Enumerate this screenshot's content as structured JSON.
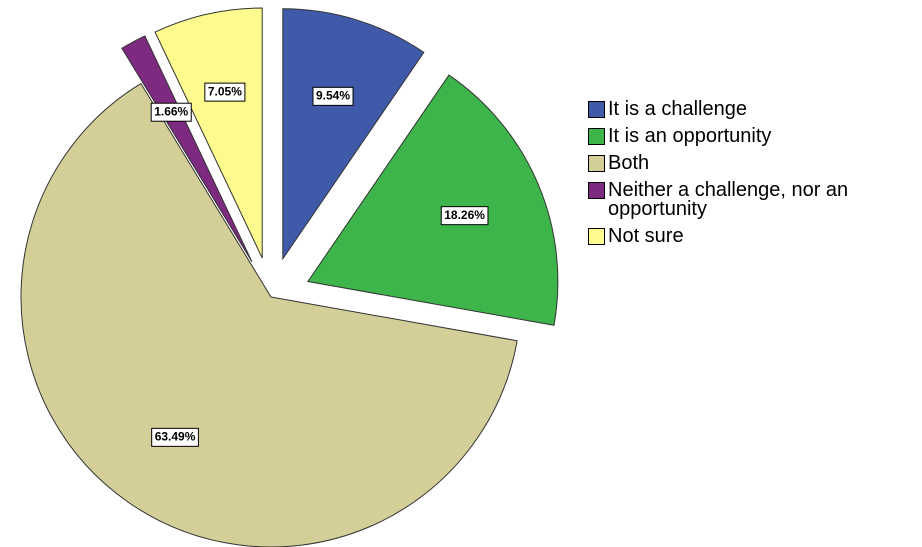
{
  "chart_data": {
    "type": "pie",
    "categories": [
      "It is a challenge",
      "It is an opportunity",
      "Both",
      "Neither a challenge, nor an opportunity",
      "Not sure"
    ],
    "values": [
      9.54,
      18.26,
      63.49,
      1.66,
      7.05
    ],
    "value_labels": [
      "9.54%",
      "18.26%",
      "63.49%",
      "1.66%",
      "7.05%"
    ],
    "colors": [
      "#3f5aa9",
      "#3db54a",
      "#d4cf98",
      "#7d2a80",
      "#fdfb8e"
    ],
    "exploded": [
      true,
      true,
      false,
      true,
      true
    ]
  }
}
